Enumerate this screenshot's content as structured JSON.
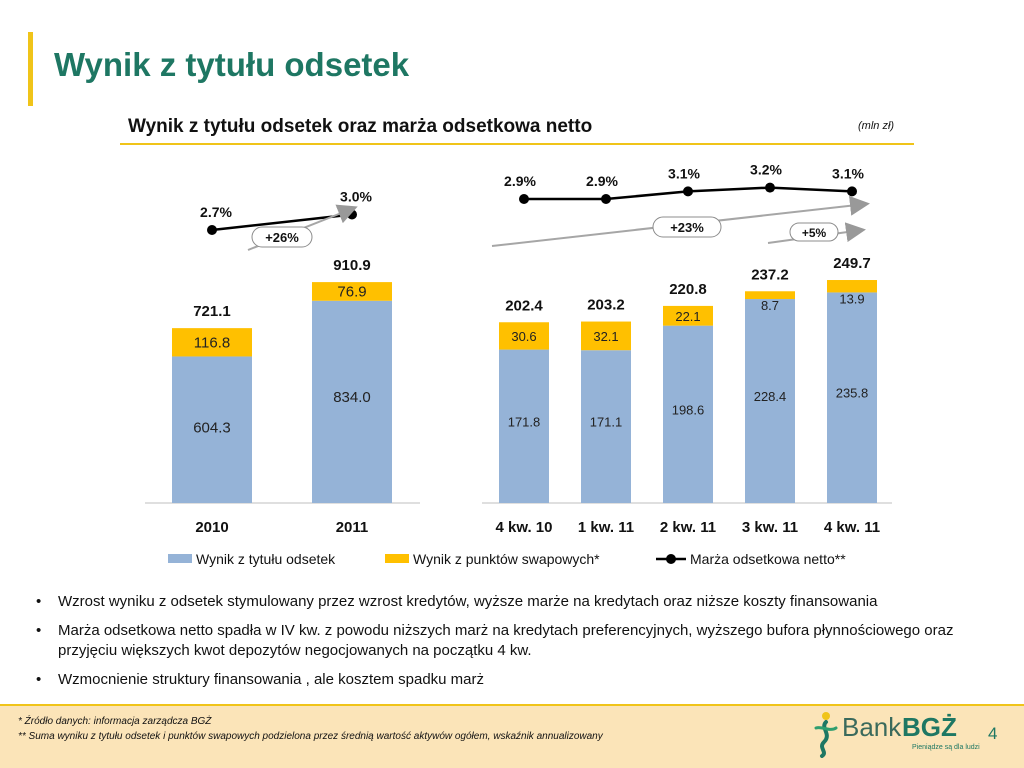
{
  "slide": {
    "title": "Wynik z tytułu odsetek",
    "chart_title": "Wynik z tytułu odsetek oraz marża odsetkowa netto",
    "unit": "(mln zł)",
    "bullets": [
      "Wzrost wyniku z odsetek stymulowany przez wzrost kredytów, wyższe marże na kredytach oraz niższe koszty finansowania",
      "Marża odsetkowa netto spadła w IV kw. z powodu niższych marż na kredytach preferencyjnych, wyższego bufora płynnościowego oraz przyjęciu większych kwot depozytów negocjowanych na początku 4 kw.",
      "Wzmocnienie struktury finansowania , ale kosztem spadku marż"
    ],
    "footnotes": [
      "*  Źródło danych: informacja zarządcza BGŻ",
      "** Suma wyniku z tytułu odsetek i punktów swapowych podzielona przez średnią wartość aktywów ogółem, wskaźnik annualizowany"
    ],
    "logo": {
      "word_bank": "Bank",
      "word_bgz": "BGŻ",
      "tagline": "Pieniądze są dla ludzi"
    },
    "page_number": "4",
    "colors": {
      "accent": "#f0c419",
      "brand_green": "#1e7763",
      "bar_blue": "#95b3d7",
      "bar_yellow": "#ffc000"
    }
  },
  "chart_data": [
    {
      "type": "bar",
      "stacked": true,
      "categories": [
        "2010",
        "2011"
      ],
      "series": [
        {
          "name": "Wynik z tytułu odsetek",
          "values": [
            604.3,
            834.0
          ],
          "labels": [
            "604.3",
            "834.0"
          ],
          "color": "#95b3d7"
        },
        {
          "name": "Wynik z punktów swapowych*",
          "values": [
            116.8,
            76.9
          ],
          "labels": [
            "116.8",
            "76.9"
          ],
          "color": "#ffc000"
        }
      ],
      "totals": [
        "721.1",
        "910.9"
      ],
      "line_series": {
        "name": "Marża odsetkowa netto**",
        "values": [
          2.7,
          3.0
        ],
        "labels": [
          "2.7%",
          "3.0%"
        ]
      },
      "growth_annotation": "+26%"
    },
    {
      "type": "bar",
      "stacked": true,
      "categories": [
        "4 kw. 10",
        "1 kw. 11",
        "2 kw. 11",
        "3 kw. 11",
        "4 kw. 11"
      ],
      "series": [
        {
          "name": "Wynik z tytułu odsetek",
          "values": [
            171.8,
            171.1,
            198.6,
            228.4,
            235.8
          ],
          "labels": [
            "171.8",
            "171.1",
            "198.6",
            "228.4",
            "235.8"
          ],
          "color": "#95b3d7"
        },
        {
          "name": "Wynik z punktów swapowych*",
          "values": [
            30.6,
            32.1,
            22.1,
            8.7,
            13.9
          ],
          "labels": [
            "30.6",
            "32.1",
            "22.1",
            "8.7",
            "13.9"
          ],
          "color": "#ffc000"
        }
      ],
      "totals": [
        "202.4",
        "203.2",
        "220.8",
        "237.2",
        "249.7"
      ],
      "line_series": {
        "name": "Marża odsetkowa netto**",
        "values": [
          2.9,
          2.9,
          3.1,
          3.2,
          3.1
        ],
        "labels": [
          "2.9%",
          "2.9%",
          "3.1%",
          "3.2%",
          "3.1%"
        ]
      },
      "growth_annotations": [
        "+23%",
        "+5%"
      ]
    }
  ],
  "legend": {
    "items": [
      {
        "label": "Wynik z tytułu odsetek",
        "color": "#95b3d7",
        "kind": "bar"
      },
      {
        "label": "Wynik z punktów swapowych*",
        "color": "#ffc000",
        "kind": "bar"
      },
      {
        "label": "Marża odsetkowa netto**",
        "color": "#000000",
        "kind": "line"
      }
    ]
  }
}
